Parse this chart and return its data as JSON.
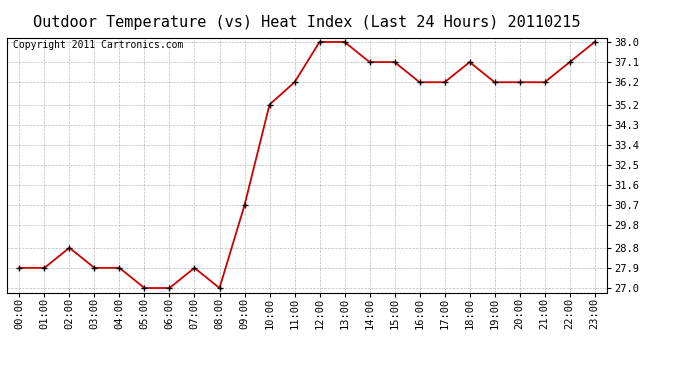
{
  "title": "Outdoor Temperature (vs) Heat Index (Last 24 Hours) 20110215",
  "copyright": "Copyright 2011 Cartronics.com",
  "x_labels": [
    "00:00",
    "01:00",
    "02:00",
    "03:00",
    "04:00",
    "05:00",
    "06:00",
    "07:00",
    "08:00",
    "09:00",
    "10:00",
    "11:00",
    "12:00",
    "13:00",
    "14:00",
    "15:00",
    "16:00",
    "17:00",
    "18:00",
    "19:00",
    "20:00",
    "21:00",
    "22:00",
    "23:00"
  ],
  "y_values": [
    27.9,
    27.9,
    28.8,
    27.9,
    27.9,
    27.0,
    27.0,
    27.9,
    27.0,
    30.7,
    35.2,
    36.2,
    38.0,
    38.0,
    37.1,
    37.1,
    36.2,
    36.2,
    37.1,
    36.2,
    36.2,
    36.2,
    37.1,
    38.0
  ],
  "y_min": 27.0,
  "y_max": 38.0,
  "y_ticks": [
    27.0,
    27.9,
    28.8,
    29.8,
    30.7,
    31.6,
    32.5,
    33.4,
    34.3,
    35.2,
    36.2,
    37.1,
    38.0
  ],
  "line_color": "#cc0000",
  "marker_color": "#000000",
  "background_color": "#ffffff",
  "grid_color": "#bbbbbb",
  "title_fontsize": 11,
  "copyright_fontsize": 7,
  "tick_fontsize": 7.5
}
